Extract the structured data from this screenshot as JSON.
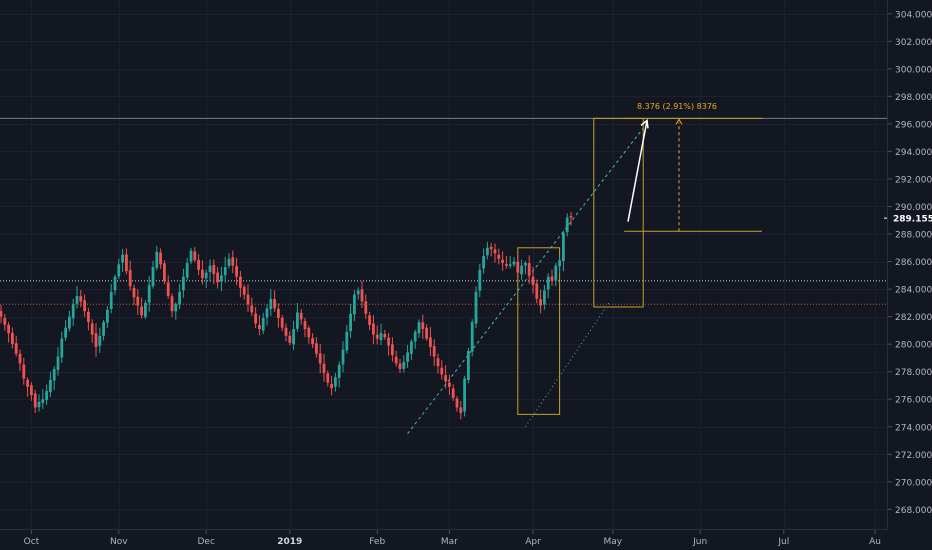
{
  "chart_data": {
    "type": "candlestick",
    "title": "",
    "xlabel": "",
    "ylabel": "",
    "ylim": [
      266.5,
      305.0
    ],
    "y_ticks": [
      "268.000",
      "270.000",
      "272.000",
      "274.000",
      "276.000",
      "278.000",
      "280.000",
      "282.000",
      "284.000",
      "286.000",
      "288.000",
      "290.000",
      "292.000",
      "294.000",
      "296.000",
      "298.000",
      "300.000",
      "302.000",
      "304.000"
    ],
    "x_ticks": [
      {
        "label": "Oct",
        "bar": 8,
        "bold": false
      },
      {
        "label": "Nov",
        "bar": 31,
        "bold": false
      },
      {
        "label": "Dec",
        "bar": 54,
        "bold": false
      },
      {
        "label": "2019",
        "bar": 76,
        "bold": true
      },
      {
        "label": "Feb",
        "bar": 99,
        "bold": false
      },
      {
        "label": "Mar",
        "bar": 118,
        "bold": false
      },
      {
        "label": "Apr",
        "bar": 140,
        "bold": false
      },
      {
        "label": "May",
        "bar": 161,
        "bold": false
      },
      {
        "label": "Jun",
        "bar": 184,
        "bold": false
      },
      {
        "label": "Jul",
        "bar": 206,
        "bold": false
      },
      {
        "label": "Au",
        "bar": 230,
        "bold": false
      }
    ],
    "closes": [
      282.0,
      281.4,
      280.8,
      280.0,
      279.3,
      278.6,
      277.5,
      276.9,
      276.3,
      275.4,
      275.8,
      276.0,
      276.6,
      277.4,
      278.2,
      279.1,
      280.4,
      281.2,
      282.0,
      282.9,
      283.5,
      283.1,
      282.4,
      281.6,
      280.7,
      279.8,
      280.6,
      281.6,
      282.5,
      283.8,
      284.9,
      285.8,
      286.5,
      285.3,
      284.2,
      283.4,
      282.8,
      282.1,
      283.0,
      284.3,
      285.6,
      286.7,
      285.8,
      284.6,
      283.5,
      282.4,
      282.9,
      283.8,
      284.9,
      285.9,
      286.8,
      286.1,
      285.4,
      284.8,
      285.2,
      285.7,
      285.1,
      284.5,
      285.0,
      285.6,
      286.2,
      285.7,
      284.9,
      284.1,
      283.6,
      282.9,
      282.3,
      281.5,
      281.1,
      281.9,
      282.6,
      283.3,
      282.6,
      281.9,
      281.2,
      280.6,
      280.1,
      281.1,
      282.3,
      281.8,
      281.1,
      280.5,
      280.0,
      279.3,
      278.6,
      277.9,
      277.2,
      276.8,
      277.6,
      278.5,
      279.6,
      280.9,
      282.2,
      283.6,
      283.9,
      283.1,
      282.2,
      281.4,
      280.7,
      280.4,
      280.8,
      280.5,
      279.9,
      279.2,
      278.6,
      278.2,
      278.7,
      279.4,
      280.2,
      280.9,
      281.6,
      281.1,
      280.4,
      279.8,
      279.1,
      278.4,
      277.8,
      277.3,
      276.9,
      276.1,
      275.4,
      275.0,
      277.5,
      279.5,
      281.6,
      283.8,
      285.4,
      286.4,
      287.0,
      286.9,
      286.6,
      286.2,
      285.9,
      285.7,
      285.8,
      286.0,
      285.2,
      285.7,
      285.9,
      285.0,
      284.3,
      283.3,
      282.8,
      283.9,
      284.9,
      284.6,
      285.7,
      286.1,
      288.1,
      289.2,
      289.2
    ],
    "series_color_up": "#26a69a",
    "series_color_down": "#ef5350",
    "horizontal_lines": [
      {
        "value": 296.4,
        "color": "#787b86"
      },
      {
        "value": 284.6,
        "color": "#d1d4dc"
      },
      {
        "value": 282.9,
        "color": "#b85c2e"
      },
      {
        "value": 288.2,
        "color": "#c9a227"
      }
    ],
    "annotation": "8.376 (2.91%) 8376",
    "last_price": "289.155",
    "last_price_value": 289.155,
    "annotation_color": "#f5a623",
    "rect_color": "#c9a227"
  }
}
